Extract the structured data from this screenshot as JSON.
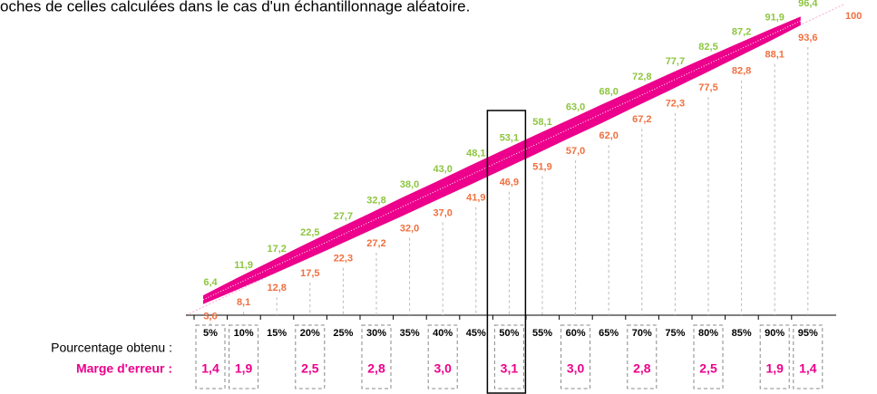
{
  "chart_data": {
    "type": "band",
    "title": "oches de celles calculées dans le cas d'un échantillonnage aléatoire.",
    "top_label": "100",
    "ylim": [
      0,
      100
    ],
    "categories": [
      "5%",
      "10%",
      "15%",
      "20%",
      "25%",
      "30%",
      "35%",
      "40%",
      "45%",
      "50%",
      "55%",
      "60%",
      "65%",
      "70%",
      "75%",
      "80%",
      "85%",
      "90%",
      "95%"
    ],
    "series": [
      {
        "name": "upper",
        "color": "#8dc63f",
        "values": [
          6.4,
          11.9,
          17.2,
          22.5,
          27.7,
          32.8,
          38.0,
          43.0,
          48.1,
          53.1,
          58.1,
          63.0,
          68.0,
          72.8,
          77.7,
          82.5,
          87.2,
          91.9,
          96.4
        ],
        "value_labels": [
          "6,4",
          "11,9",
          "17,2",
          "22,5",
          "27,7",
          "32,8",
          "38,0",
          "43,0",
          "48,1",
          "53,1",
          "58,1",
          "63,0",
          "68,0",
          "72,8",
          "77,7",
          "82,5",
          "87,2",
          "91,9",
          "96,4"
        ]
      },
      {
        "name": "lower",
        "color": "#f07040",
        "values": [
          3.6,
          8.1,
          12.8,
          17.5,
          22.3,
          27.2,
          32.0,
          37.0,
          41.9,
          46.9,
          51.9,
          57.0,
          62.0,
          67.2,
          72.3,
          77.5,
          82.8,
          88.1,
          93.6
        ],
        "value_labels": [
          "3,6",
          "8,1",
          "12,8",
          "17,5",
          "22,3",
          "27,2",
          "32,0",
          "37,0",
          "41,9",
          "46,9",
          "51,9",
          "57,0",
          "62,0",
          "67,2",
          "72,3",
          "77,5",
          "82,8",
          "88,1",
          "93,6"
        ]
      }
    ],
    "band_color": "#ec008c",
    "row_label_obtained": "Pourcentage obtenu :",
    "row_label_margin": "Marge d'erreur :",
    "margins": {
      "color": "#ec008c",
      "values": [
        1.4,
        1.9,
        null,
        2.5,
        null,
        2.8,
        null,
        3.0,
        null,
        3.1,
        null,
        3.0,
        null,
        2.8,
        null,
        2.5,
        null,
        1.9,
        1.4
      ],
      "value_labels": [
        "1,4",
        "1,9",
        null,
        "2,5",
        null,
        "2,8",
        null,
        "3,0",
        null,
        "3,1",
        null,
        "3,0",
        null,
        "2,8",
        null,
        "2,5",
        null,
        "1,9",
        "1,4"
      ]
    },
    "highlight": "50%"
  }
}
